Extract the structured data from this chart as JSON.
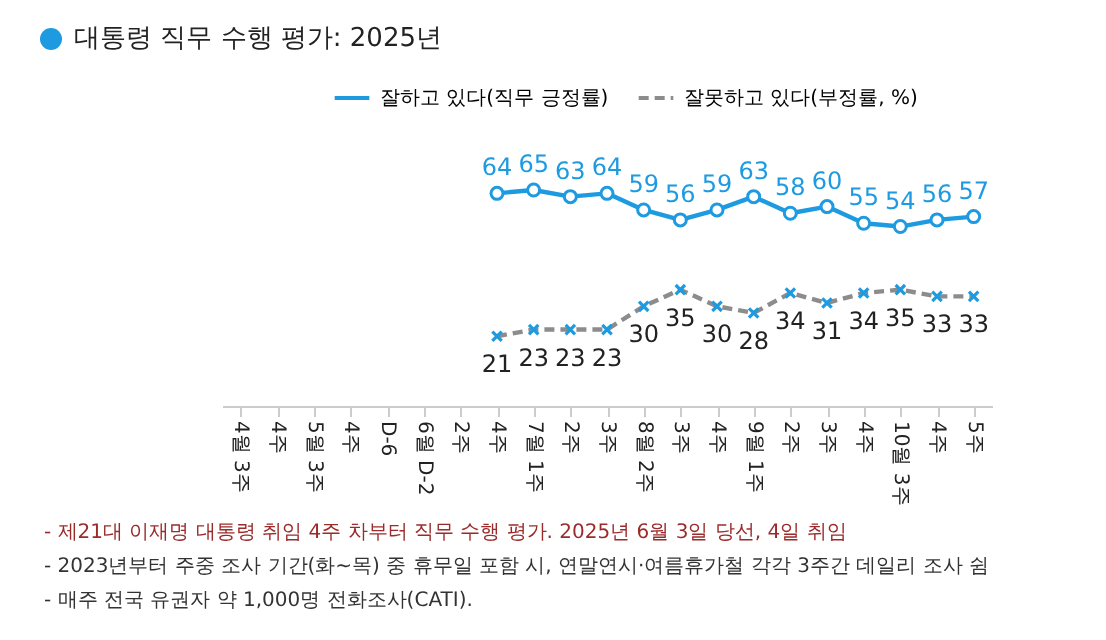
{
  "chart_data": {
    "type": "line",
    "title": "대통령 직무 수행 평가: 2025년",
    "categories": [
      "4월 3주",
      "4주",
      "5월 3주",
      "4주",
      "D-6",
      "6월 D-2",
      "2주",
      "4주",
      "7월 1주",
      "2주",
      "3주",
      "8월 2주",
      "3주",
      "4주",
      "9월 1주",
      "2주",
      "3주",
      "4주",
      "10월 3주",
      "4주",
      "5주"
    ],
    "series": [
      {
        "name": "잘하고 있다(직무 긍정률)",
        "color": "#1e9be0",
        "marker": "circle",
        "line_style": "solid",
        "values": [
          null,
          null,
          null,
          null,
          null,
          null,
          null,
          64,
          65,
          63,
          64,
          59,
          56,
          59,
          63,
          58,
          60,
          55,
          54,
          56,
          57
        ]
      },
      {
        "name": "잘못하고 있다(부정률, %)",
        "color": "#8c8c8c",
        "marker": "cross",
        "line_style": "dashed",
        "values": [
          null,
          null,
          null,
          null,
          null,
          null,
          null,
          21,
          23,
          23,
          23,
          30,
          35,
          30,
          28,
          34,
          31,
          34,
          35,
          33,
          33
        ]
      }
    ],
    "data_labels": true,
    "legend": "top right",
    "annotations": [
      "- 제21대 이재명 대통령 취임 4주 차부터 직무 수행 평가. 2025년 6월 3일 당선, 4일 취임",
      "- 2023년부터 주중 조사 기간(화~목) 중 휴무일 포함 시, 연말연시·여름휴가철 각각 3주간 데일리 조사 쉼",
      "- 매주 전국 유권자 약 1,000명 전화조사(CATI)."
    ]
  }
}
